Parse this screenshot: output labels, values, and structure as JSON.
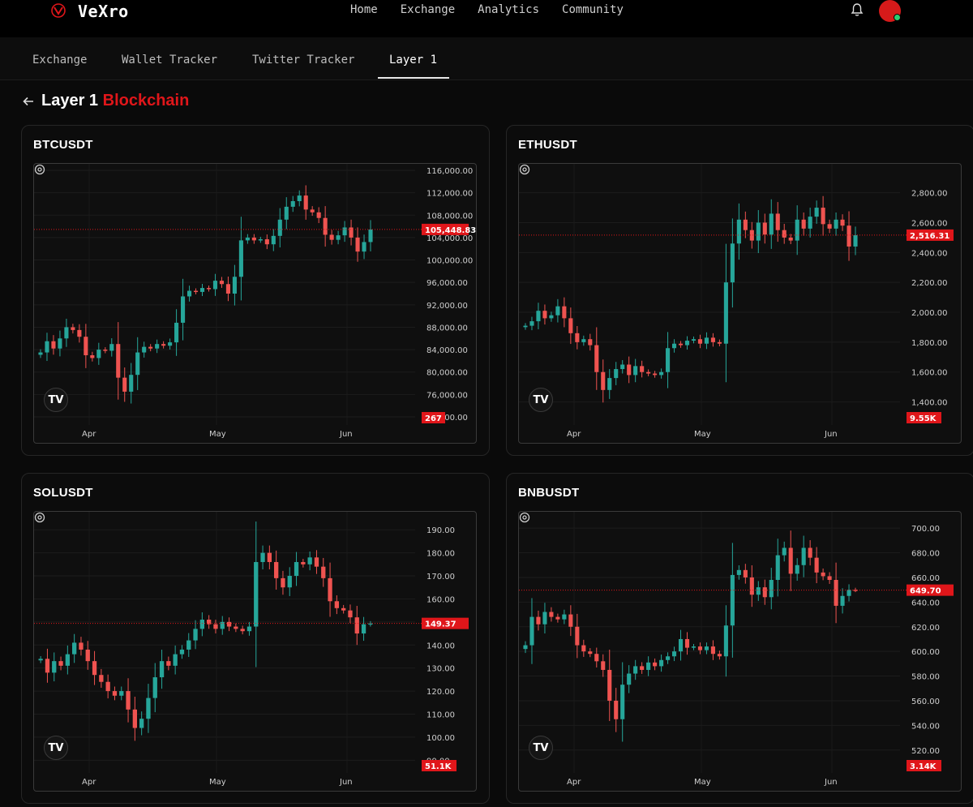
{
  "app": {
    "brand": "VeXro"
  },
  "nav": {
    "items": [
      "Home",
      "Exchange",
      "Analytics",
      "Community"
    ]
  },
  "tabs": {
    "items": [
      "Exchange",
      "Wallet Tracker",
      "Twitter Tracker",
      "Layer 1"
    ],
    "active": "Layer 1"
  },
  "page": {
    "title_white": "Layer 1",
    "title_red": "Blockchain"
  },
  "colors": {
    "accent": "#e0161a",
    "up": "#26a69a",
    "down": "#ef5350"
  },
  "icons": {
    "back": "arrow-left-icon",
    "bell": "bell-icon",
    "logo": "vexro-logo-icon",
    "tradingview": "tradingview-logo-icon",
    "settings": "gear-icon"
  },
  "tv_label": "TV",
  "charts": [
    {
      "symbol": "BTCUSDT",
      "chart_data": {
        "type": "candlestick",
        "x_labels": [
          "Apr",
          "May",
          "Jun"
        ],
        "y_ticks": [
          "116,000.00",
          "112,000.00",
          "108,000.00",
          "104,000.00",
          "100,000.00",
          "96,000.00",
          "92,000.00",
          "88,000.00",
          "84,000.00",
          "80,000.00",
          "76,000.00",
          "72,000.00"
        ],
        "ylim": [
          72000,
          116000
        ],
        "last_price": "105,448.83",
        "volume": "267",
        "closes": [
          83500,
          85500,
          84200,
          86000,
          88000,
          87500,
          86300,
          83000,
          82500,
          84000,
          83800,
          85000,
          79000,
          76500,
          79500,
          83500,
          84500,
          84200,
          85000,
          84700,
          85300,
          88800,
          93500,
          94500,
          94300,
          95000,
          94800,
          96300,
          95700,
          94000,
          97000,
          103500,
          104000,
          103500,
          103700,
          102800,
          104300,
          107200,
          109500,
          110500,
          111500,
          109000,
          108500,
          107500,
          104500,
          103600,
          104400,
          105800,
          104000,
          101500,
          103200,
          105448
        ]
      }
    },
    {
      "symbol": "ETHUSDT",
      "chart_data": {
        "type": "candlestick",
        "x_labels": [
          "Apr",
          "May",
          "Jun"
        ],
        "y_ticks": [
          "2,800.00",
          "2,600.00",
          "2,400.00",
          "2,200.00",
          "2,000.00",
          "1,800.00",
          "1,600.00",
          "1,400.00"
        ],
        "ylim": [
          1300,
          2950
        ],
        "last_price": "2,516.31",
        "volume": "9.55K",
        "closes": [
          1910,
          1940,
          2010,
          1960,
          1980,
          2040,
          1960,
          1860,
          1800,
          1820,
          1780,
          1600,
          1480,
          1560,
          1620,
          1650,
          1580,
          1640,
          1600,
          1590,
          1580,
          1600,
          1760,
          1790,
          1780,
          1810,
          1820,
          1790,
          1830,
          1800,
          1790,
          2200,
          2460,
          2620,
          2550,
          2480,
          2600,
          2520,
          2660,
          2550,
          2500,
          2480,
          2620,
          2560,
          2640,
          2700,
          2590,
          2560,
          2620,
          2580,
          2440,
          2516
        ]
      }
    },
    {
      "symbol": "SOLUSDT",
      "chart_data": {
        "type": "candlestick",
        "x_labels": [
          "Apr",
          "May",
          "Jun"
        ],
        "y_ticks": [
          "190.00",
          "180.00",
          "170.00",
          "160.00",
          "150.00",
          "140.00",
          "130.00",
          "120.00",
          "110.00",
          "100.00",
          "90.00"
        ],
        "ylim": [
          88,
          195
        ],
        "last_price": "149.37",
        "volume": "51.1K",
        "closes": [
          134,
          128,
          133,
          131,
          136,
          141,
          138,
          133,
          127,
          124,
          120,
          118,
          120,
          112,
          104,
          108,
          117,
          126,
          133,
          131,
          136,
          138,
          142,
          147,
          151,
          149,
          147,
          150,
          148,
          147,
          146,
          148,
          176,
          180,
          176,
          169,
          165,
          170,
          176,
          175,
          178,
          174,
          169,
          159,
          156,
          155,
          152,
          145,
          149,
          149.37
        ]
      }
    },
    {
      "symbol": "BNBUSDT",
      "chart_data": {
        "type": "candlestick",
        "x_labels": [
          "Apr",
          "May",
          "Jun"
        ],
        "y_ticks": [
          "700.00",
          "680.00",
          "660.00",
          "640.00",
          "620.00",
          "600.00",
          "580.00",
          "560.00",
          "540.00",
          "520.00"
        ],
        "ylim": [
          508,
          708
        ],
        "last_price": "649.70",
        "volume": "3.14K",
        "closes": [
          605,
          628,
          622,
          632,
          628,
          626,
          630,
          620,
          605,
          600,
          598,
          592,
          585,
          560,
          545,
          573,
          582,
          588,
          585,
          591,
          588,
          593,
          596,
          600,
          610,
          603,
          604,
          601,
          604,
          598,
          596,
          621,
          662,
          666,
          660,
          646,
          652,
          644,
          658,
          678,
          684,
          663,
          670,
          684,
          676,
          664,
          661,
          658,
          637,
          645,
          650,
          649.7
        ]
      }
    }
  ]
}
